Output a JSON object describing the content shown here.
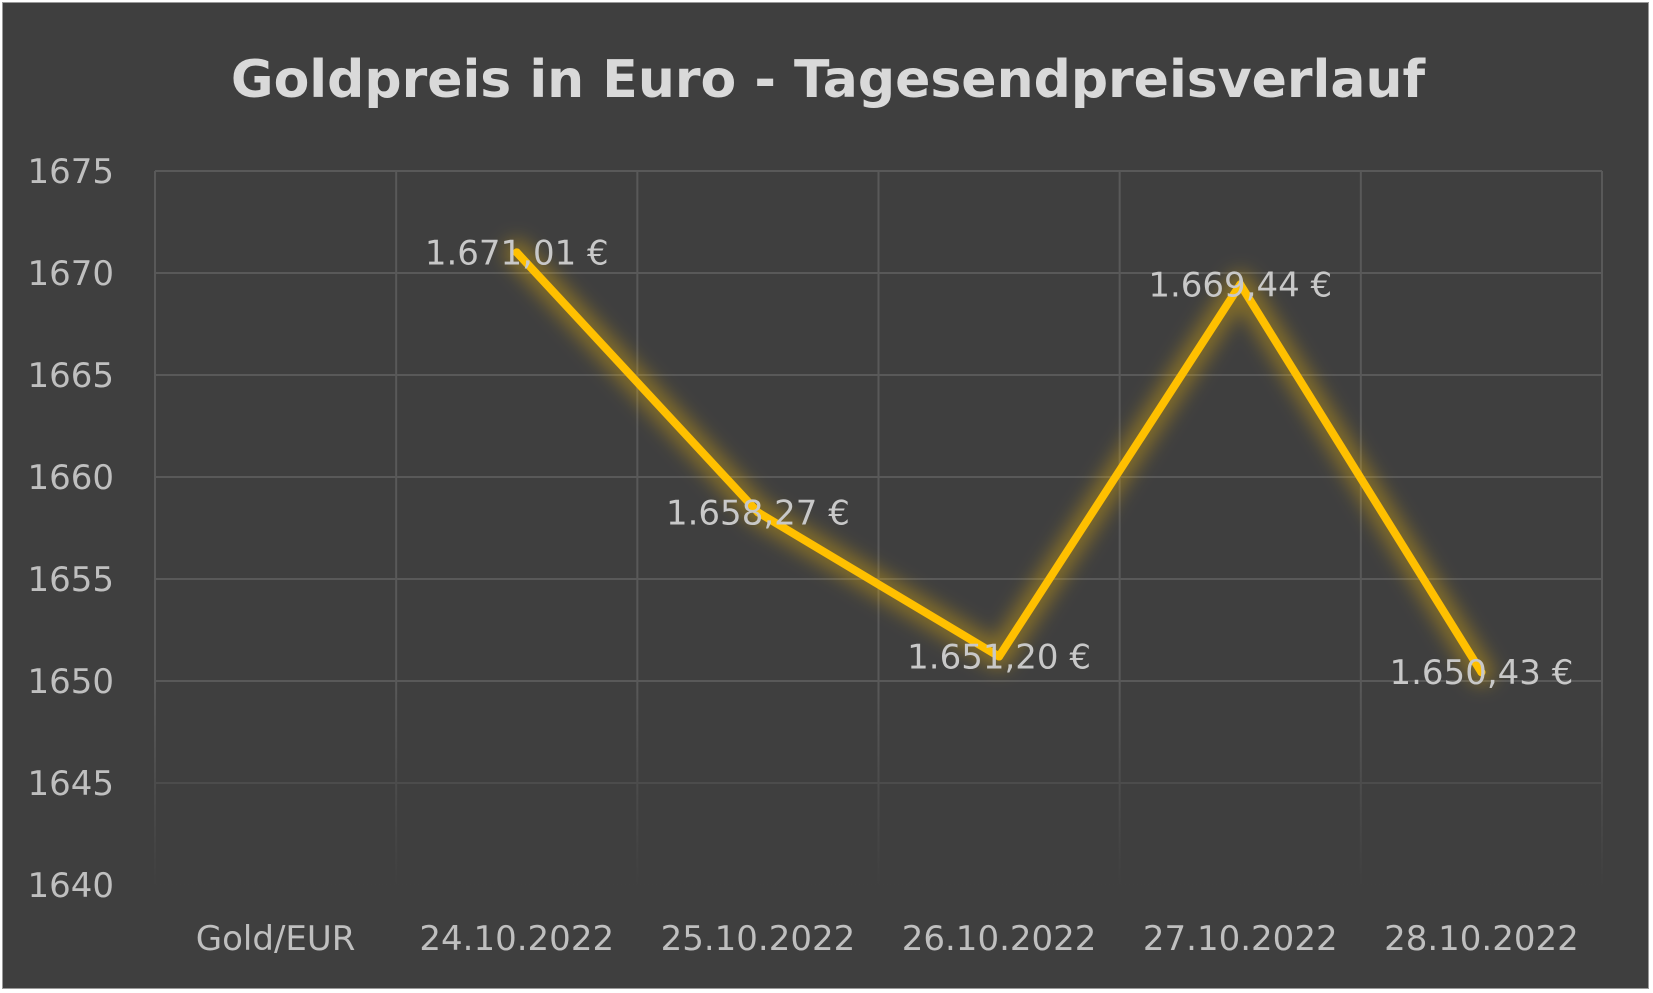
{
  "chart_data": {
    "type": "line",
    "title": "Goldpreis in Euro - Tagesendpreisverlauf",
    "xlabel": "",
    "ylabel": "",
    "categories": [
      "Gold/EUR",
      "24.10.2022",
      "25.10.2022",
      "26.10.2022",
      "27.10.2022",
      "28.10.2022"
    ],
    "series": [
      {
        "values": [
          null,
          1671.01,
          1658.27,
          1651.2,
          1669.44,
          1650.43
        ],
        "data_labels": [
          "",
          "1.671,01 €",
          "1.658,27 €",
          "1.651,20 €",
          "1.669,44 €",
          "1.650,43 €"
        ],
        "color": "#ffc000"
      }
    ],
    "ylim": [
      1640,
      1675
    ],
    "yticks": [
      "1640",
      "1645",
      "1650",
      "1655",
      "1660",
      "1665",
      "1670",
      "1675"
    ],
    "grid": true,
    "legend": "none"
  },
  "colors": {
    "background": "#3f3f3f",
    "grid": "#595959",
    "line": "#ffc000",
    "text": "#bfbfbf"
  }
}
